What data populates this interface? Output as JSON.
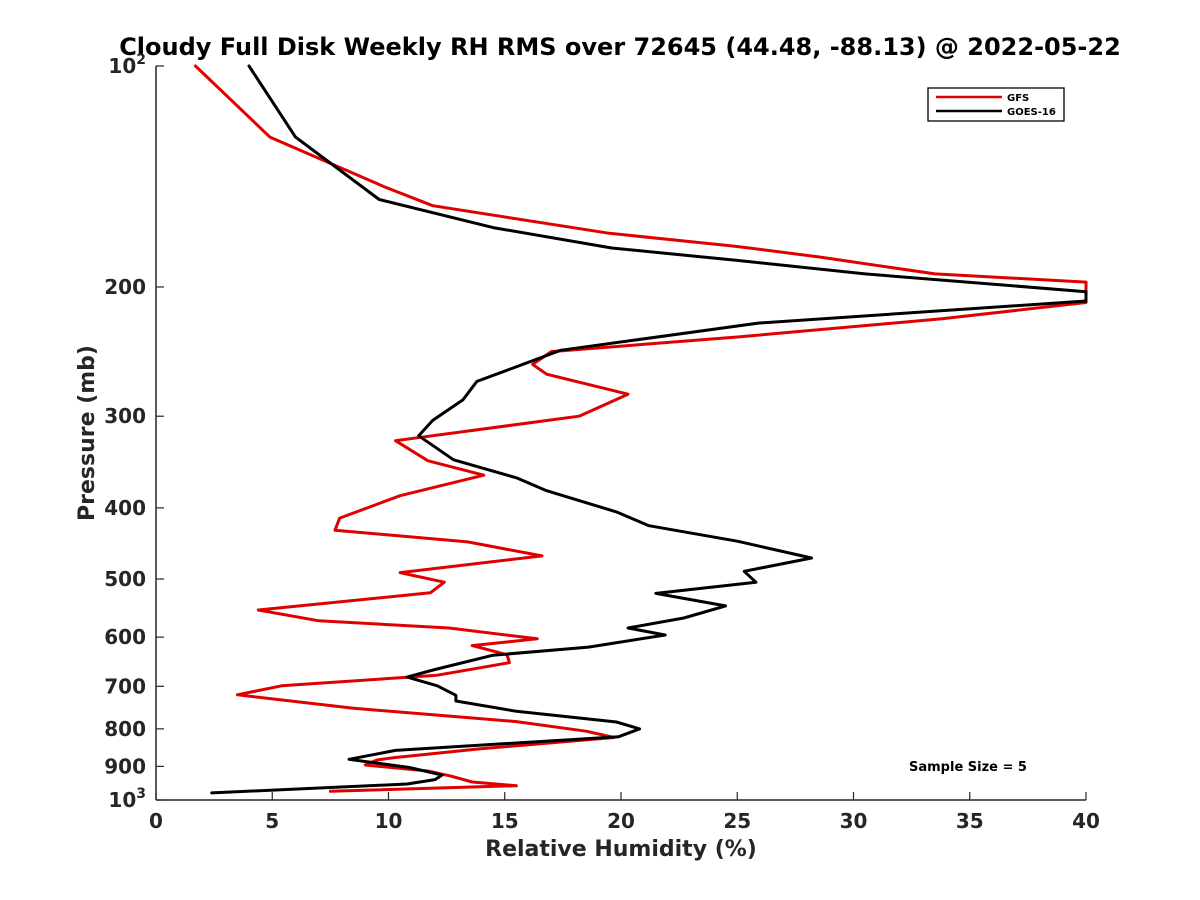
{
  "chart_data": {
    "type": "line",
    "title": "Cloudy Full Disk Weekly RH RMS over 72645 (44.48, -88.13) @ 2022-05-22",
    "xlabel": "Relative Humidity (%)",
    "ylabel": "Pressure (mb)",
    "xlim": [
      0,
      40
    ],
    "ylim": [
      100,
      1000
    ],
    "y_scale": "log",
    "y_reversed": true,
    "x_ticks": [
      "0",
      "5",
      "10",
      "15",
      "20",
      "25",
      "30",
      "35",
      "40"
    ],
    "y_ticks": [
      {
        "value": 100,
        "base": "10",
        "exp": "2"
      },
      {
        "value": 200,
        "label": "200"
      },
      {
        "value": 300,
        "label": "300"
      },
      {
        "value": 400,
        "label": "400"
      },
      {
        "value": 500,
        "label": "500"
      },
      {
        "value": 600,
        "label": "600"
      },
      {
        "value": 700,
        "label": "700"
      },
      {
        "value": 800,
        "label": "800"
      },
      {
        "value": 900,
        "label": "900"
      },
      {
        "value": 1000,
        "base": "10",
        "exp": "3"
      }
    ],
    "grid": false,
    "legend_position": "top-right",
    "annotation": "Sample Size = 5",
    "series": [
      {
        "name": "GFS",
        "color": "#e00000",
        "points": [
          [
            1.7,
            100
          ],
          [
            4.9,
            125
          ],
          [
            9.8,
            146
          ],
          [
            11.9,
            155
          ],
          [
            19.5,
            169
          ],
          [
            24.9,
            176
          ],
          [
            28.5,
            182
          ],
          [
            33.5,
            192
          ],
          [
            40.0,
            197
          ],
          [
            40.0,
            210
          ],
          [
            33.8,
            221
          ],
          [
            25.0,
            234
          ],
          [
            17.0,
            245
          ],
          [
            16.2,
            255
          ],
          [
            16.8,
            263
          ],
          [
            20.3,
            280
          ],
          [
            18.2,
            300
          ],
          [
            10.3,
            324
          ],
          [
            11.7,
            345
          ],
          [
            14.1,
            361
          ],
          [
            10.5,
            385
          ],
          [
            7.9,
            413
          ],
          [
            7.7,
            429
          ],
          [
            13.4,
            445
          ],
          [
            16.6,
            465
          ],
          [
            10.5,
            490
          ],
          [
            12.4,
            505
          ],
          [
            11.8,
            522
          ],
          [
            4.4,
            551
          ],
          [
            7.0,
            570
          ],
          [
            12.6,
            583
          ],
          [
            16.4,
            603
          ],
          [
            13.6,
            616
          ],
          [
            15.1,
            634
          ],
          [
            15.2,
            650
          ],
          [
            12.1,
            676
          ],
          [
            5.4,
            699
          ],
          [
            3.5,
            719
          ],
          [
            8.5,
            750
          ],
          [
            15.5,
            782
          ],
          [
            18.5,
            806
          ],
          [
            19.7,
            822
          ],
          [
            13.9,
            852
          ],
          [
            10.2,
            876
          ],
          [
            9.5,
            882
          ],
          [
            9.0,
            896
          ],
          [
            11.7,
            913
          ],
          [
            12.7,
            928
          ],
          [
            13.6,
            945
          ],
          [
            15.5,
            956
          ],
          [
            7.5,
            973
          ]
        ]
      },
      {
        "name": "GOES-16",
        "color": "#000000",
        "points": [
          [
            4.0,
            100
          ],
          [
            6.0,
            125
          ],
          [
            9.6,
            152
          ],
          [
            14.5,
            166
          ],
          [
            19.6,
            177
          ],
          [
            25.0,
            184
          ],
          [
            30.5,
            192
          ],
          [
            40.0,
            203
          ],
          [
            40.0,
            209
          ],
          [
            25.9,
            224
          ],
          [
            17.4,
            244
          ],
          [
            15.2,
            259
          ],
          [
            13.8,
            269
          ],
          [
            13.2,
            285
          ],
          [
            11.9,
            304
          ],
          [
            11.3,
            319
          ],
          [
            12.8,
            344
          ],
          [
            15.5,
            364
          ],
          [
            16.8,
            379
          ],
          [
            19.8,
            405
          ],
          [
            21.2,
            423
          ],
          [
            25.0,
            444
          ],
          [
            28.2,
            468
          ],
          [
            25.3,
            488
          ],
          [
            25.8,
            505
          ],
          [
            21.5,
            523
          ],
          [
            24.5,
            544
          ],
          [
            22.7,
            565
          ],
          [
            20.3,
            583
          ],
          [
            21.9,
            596
          ],
          [
            18.6,
            619
          ],
          [
            14.5,
            635
          ],
          [
            12.0,
            664
          ],
          [
            10.8,
            680
          ],
          [
            12.1,
            699
          ],
          [
            12.9,
            720
          ],
          [
            12.9,
            733
          ],
          [
            15.5,
            757
          ],
          [
            19.8,
            783
          ],
          [
            20.8,
            800
          ],
          [
            19.9,
            820
          ],
          [
            10.3,
            856
          ],
          [
            8.3,
            880
          ],
          [
            10.9,
            903
          ],
          [
            12.3,
            925
          ],
          [
            12.0,
            938
          ],
          [
            10.8,
            951
          ],
          [
            2.4,
            978
          ]
        ]
      }
    ]
  }
}
